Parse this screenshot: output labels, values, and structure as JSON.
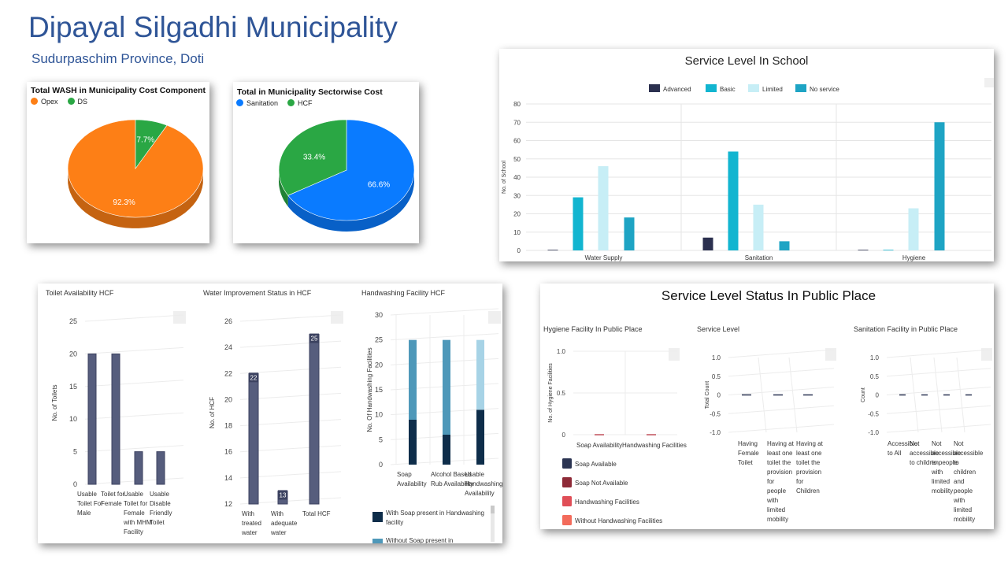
{
  "header": {
    "title": "Dipayal Silgadhi Municipality",
    "subtitle": "Sudurpaschim Province, Doti"
  },
  "colors": {
    "orange": "#fd7f16",
    "green": "#2aa744",
    "blue": "#0a7bff",
    "navy": "#2b304f",
    "cyan": "#12b5d0",
    "light_cyan": "#c7eef6",
    "teal": "#1ea4c4",
    "hcf_bar": "#565d7d",
    "hw_dark": "#0e2d4a",
    "hw_mid": "#4e98b9",
    "hw_light": "#a7d3e6",
    "title_blue": "#2f5597"
  },
  "menu_glyph": "···",
  "chart_data": [
    {
      "id": "wash-cost",
      "type": "pie",
      "title": "Total WASH in Municipality Cost Component",
      "categories": [
        "Opex",
        "DS"
      ],
      "values": [
        92.3,
        7.7
      ],
      "value_labels": [
        "92.3%",
        "7.7%"
      ],
      "colors": [
        "#fd7f16",
        "#2aa744"
      ],
      "legend": "top-left"
    },
    {
      "id": "sector-cost",
      "type": "pie",
      "title": "Total in Municipality Sectorwise Cost",
      "categories": [
        "Sanitation",
        "HCF"
      ],
      "values": [
        66.6,
        33.4
      ],
      "value_labels": [
        "66.6%",
        "33.4%"
      ],
      "colors": [
        "#0a7bff",
        "#2aa744"
      ],
      "legend": "top-left"
    },
    {
      "id": "school",
      "type": "bar",
      "title": "Service Level In School",
      "categories": [
        "Water Supply",
        "Sanitation",
        "Hygiene"
      ],
      "series": [
        {
          "name": "Advanced",
          "values": [
            0,
            7,
            0
          ]
        },
        {
          "name": "Basic",
          "values": [
            29,
            54,
            0
          ]
        },
        {
          "name": "Limited",
          "values": [
            46,
            25,
            23
          ]
        },
        {
          "name": "No service",
          "values": [
            18,
            5,
            70
          ]
        }
      ],
      "colors": [
        "#2b304f",
        "#12b5d0",
        "#c7eef6",
        "#1ea4c4"
      ],
      "ylabel": "No. of School",
      "ylim": [
        0,
        80
      ],
      "yticks": [
        "0",
        "10",
        "20",
        "30",
        "40",
        "50",
        "60",
        "70",
        "80"
      ],
      "grid": true,
      "legend": "top-center"
    },
    {
      "id": "toilet-hcf",
      "type": "bar",
      "title": "Toilet Availability HCF",
      "categories": [
        "Usable Toilet For Male",
        "Toilet for Female",
        "Usable Toilet for Female with MHM Facility",
        "Usable Disable Friendly Toilet"
      ],
      "category_lines": [
        [
          "Usable",
          "Toilet For",
          "Male"
        ],
        [
          "Toilet for",
          "Female"
        ],
        [
          "Usable",
          "Toilet for",
          "Female",
          "with MHM",
          "Facility"
        ],
        [
          "Usable",
          "Disable",
          "Friendly",
          "Toilet"
        ]
      ],
      "values": [
        20,
        20,
        5,
        5
      ],
      "ylabel": "No. of Toilets",
      "ylim": [
        0,
        25
      ],
      "yticks": [
        "0",
        "5",
        "10",
        "15",
        "20",
        "25"
      ]
    },
    {
      "id": "water-hcf",
      "type": "bar",
      "title": "Water Improvement Status in HCF",
      "categories": [
        "With treated water",
        "With adequate water",
        "Total HCF"
      ],
      "category_lines": [
        [
          "With",
          "treated",
          "water"
        ],
        [
          "With",
          "adequate",
          "water"
        ],
        [
          "Total HCF"
        ]
      ],
      "values": [
        22,
        13,
        25
      ],
      "value_labels": [
        "22",
        "13",
        "25"
      ],
      "ylabel": "No. of HCF",
      "ylim": [
        12,
        26
      ],
      "yticks": [
        "12",
        "14",
        "16",
        "18",
        "20",
        "22",
        "24",
        "26"
      ]
    },
    {
      "id": "handwash-hcf",
      "type": "bar",
      "title": "Handwashing Facility HCF",
      "categories": [
        "Soap Availability",
        "Alcohol Based Rub Availability",
        "Usable Handwashing Availability"
      ],
      "category_lines": [
        [
          "Soap",
          "Availability"
        ],
        [
          "Alcohol Based",
          "Rub Availability"
        ],
        [
          "Usable",
          "Handwashing",
          "Availability"
        ]
      ],
      "series": [
        {
          "name": "With Soap present in Handwashing facility",
          "values": [
            9,
            6,
            11
          ]
        },
        {
          "name": "Without Soap present in Handwashing facility",
          "values": [
            16,
            19,
            0
          ]
        },
        {
          "name": "Usable Handwashing Availability",
          "values": [
            0,
            0,
            14
          ]
        }
      ],
      "legend_items": [
        "With Soap present in Handwashing facility",
        "Without Soap present in"
      ],
      "ylabel": "No. Of Handwashing Facilities",
      "ylim": [
        0,
        30
      ],
      "yticks": [
        "0",
        "5",
        "10",
        "15",
        "20",
        "25",
        "30"
      ],
      "stacked": true
    },
    {
      "id": "public-hygiene",
      "type": "bar",
      "title": "Hygiene Facility In Public Place",
      "categories": [
        "Soap Availability",
        "Handwashing Facilities"
      ],
      "series": [
        {
          "name": "Soap Available",
          "values": [
            0,
            0
          ]
        },
        {
          "name": "Soap Not Available",
          "values": [
            0,
            0
          ]
        },
        {
          "name": "Handwashing Facilities",
          "values": [
            0,
            0
          ]
        },
        {
          "name": "Without Handwashing Facilities",
          "values": [
            0,
            0
          ]
        }
      ],
      "series_colors": [
        "#2b3452",
        "#8e2a37",
        "#e04e57",
        "#f36b5b"
      ],
      "ylabel": "No. of Hygiene Facilities",
      "ylim": [
        0,
        1.0
      ],
      "yticks": [
        "0",
        "0.5",
        "1.0"
      ]
    },
    {
      "id": "public-service",
      "type": "bar",
      "title": "Service Level",
      "categories": [
        "Having Female Toilet",
        "Having at least one toilet the provision for people with limited mobility",
        "Having at least one toilet the provision for Children"
      ],
      "category_lines": [
        [
          "Having",
          "Female",
          "Toilet"
        ],
        [
          "Having at",
          "least one",
          "toilet the",
          "provision",
          "for",
          "people",
          "with",
          "limited",
          "mobility"
        ],
        [
          "Having at",
          "least one",
          "toilet the",
          "provision",
          "for",
          "Children"
        ]
      ],
      "values": [
        0,
        0,
        0
      ],
      "ylabel": "Total Count",
      "ylim": [
        -1.0,
        1.0
      ],
      "yticks": [
        "-1.0",
        "-0.5",
        "0",
        "0.5",
        "1.0"
      ]
    },
    {
      "id": "public-sanitation",
      "type": "bar",
      "title": "Sanitation Facility in Public Place",
      "categories": [
        "Accessible to All",
        "Not accessible to children",
        "Not accessible to people with limited mobility",
        "Not accessible to children and people with limited mobility"
      ],
      "category_lines": [
        [
          "Accessible",
          "to All"
        ],
        [
          "Not",
          "accessible",
          "to children"
        ],
        [
          "Not",
          "accessible",
          "to people",
          "with",
          "limited",
          "mobility"
        ],
        [
          "Not",
          "accessible",
          "to",
          "children",
          "and",
          "people",
          "with",
          "limited",
          "mobility"
        ]
      ],
      "values": [
        0,
        0,
        0,
        0
      ],
      "ylabel": "Count",
      "ylim": [
        -1.0,
        1.0
      ],
      "yticks": [
        "-1.0",
        "-0.5",
        "0",
        "0.5",
        "1.0"
      ]
    }
  ],
  "public_panel": {
    "title": "Service Level Status In Public Place"
  }
}
